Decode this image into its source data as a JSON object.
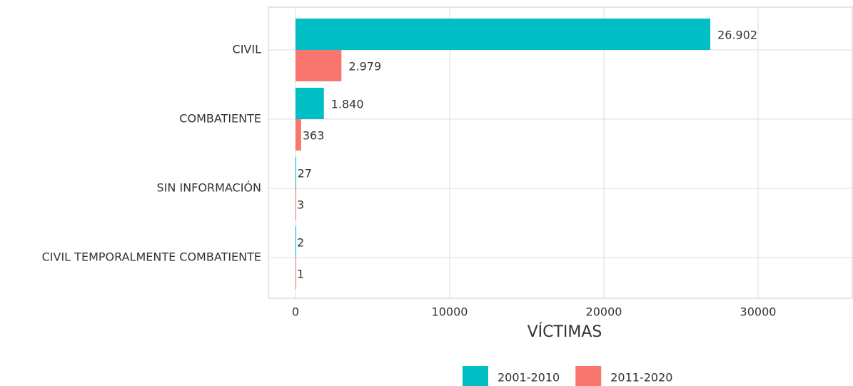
{
  "chart_data": {
    "type": "barh",
    "categories": [
      "CIVIL",
      "COMBATIENTE",
      "SIN INFORMACIÓN",
      "CIVIL TEMPORALMENTE COMBATIENTE"
    ],
    "series": [
      {
        "name": "2001-2010",
        "color": "#00BFC4",
        "values": [
          26902,
          1840,
          27,
          2
        ],
        "value_labels": [
          "26.902",
          "1.840",
          "27",
          "2"
        ]
      },
      {
        "name": "2011-2020",
        "color": "#F8766D",
        "values": [
          2979,
          363,
          3,
          1
        ],
        "value_labels": [
          "2.979",
          "363",
          "3",
          "1"
        ]
      }
    ],
    "x_label": "VÍCTIMAS",
    "xlim": [
      -1759,
      36157
    ],
    "xticks": [
      0,
      10000,
      20000,
      30000
    ],
    "grid": true,
    "legend": "bottom"
  }
}
